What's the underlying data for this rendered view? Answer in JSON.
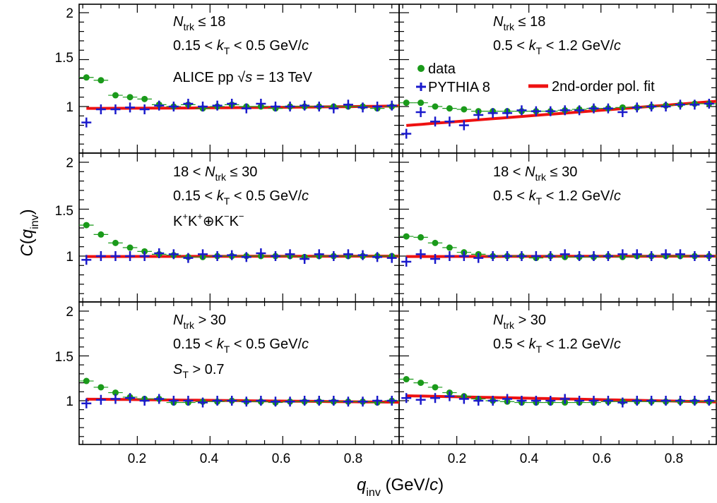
{
  "colors": {
    "data": "#1a9a1a",
    "pythia": "#1a1acc",
    "fit": "#ee1111",
    "axes": "#000000"
  },
  "chart_data": [
    {
      "type": "scatter",
      "panel": "top-left",
      "labels": [
        "Ntrk ≤ 18",
        "0.15 < kT < 0.5 GeV/c",
        "ALICE pp √s = 13 TeV"
      ],
      "series": [
        {
          "name": "data",
          "x": [
            0.06,
            0.1,
            0.14,
            0.18,
            0.22,
            0.26,
            0.3,
            0.34,
            0.38,
            0.42,
            0.46,
            0.5,
            0.54,
            0.58,
            0.62,
            0.66,
            0.7,
            0.74,
            0.78,
            0.82,
            0.86,
            0.9
          ],
          "y": [
            1.31,
            1.28,
            1.12,
            1.1,
            1.08,
            1.02,
            1.0,
            1.02,
            0.98,
            1.0,
            1.02,
            1.0,
            1.0,
            0.98,
            1.0,
            1.0,
            1.0,
            1.0,
            1.0,
            1.0,
            0.98,
            1.0
          ]
        },
        {
          "name": "PYTHIA 8",
          "x": [
            0.06,
            0.1,
            0.14,
            0.18,
            0.22,
            0.26,
            0.3,
            0.34,
            0.38,
            0.42,
            0.46,
            0.5,
            0.54,
            0.58,
            0.62,
            0.66,
            0.7,
            0.74,
            0.78,
            0.82,
            0.86,
            0.9
          ],
          "y": [
            0.83,
            0.97,
            0.97,
            0.99,
            0.97,
            1.01,
            1.0,
            1.03,
            1.0,
            1.01,
            1.03,
            0.98,
            1.03,
            1.0,
            1.0,
            1.01,
            1.0,
            0.98,
            1.02,
            0.99,
            1.0,
            1.01
          ]
        },
        {
          "name": "2nd-order pol. fit",
          "curve": [
            0.98,
            0.005,
            0.025
          ]
        }
      ]
    },
    {
      "type": "scatter",
      "panel": "top-right",
      "labels": [
        "Ntrk ≤ 18",
        "0.5 < kT < 1.2 GeV/c"
      ],
      "series": [
        {
          "name": "data",
          "x": [
            0.06,
            0.1,
            0.14,
            0.18,
            0.22,
            0.26,
            0.3,
            0.34,
            0.38,
            0.42,
            0.46,
            0.5,
            0.54,
            0.58,
            0.62,
            0.66,
            0.7,
            0.74,
            0.78,
            0.82,
            0.86,
            0.9
          ],
          "y": [
            1.04,
            1.04,
            1.0,
            0.98,
            0.97,
            0.95,
            0.95,
            0.95,
            0.95,
            0.95,
            0.95,
            0.96,
            0.97,
            0.98,
            0.98,
            0.99,
            0.99,
            1.0,
            1.01,
            1.02,
            1.03,
            1.03
          ]
        },
        {
          "name": "PYTHIA 8",
          "x": [
            0.06,
            0.1,
            0.14,
            0.18,
            0.22,
            0.26,
            0.3,
            0.34,
            0.38,
            0.42,
            0.46,
            0.5,
            0.54,
            0.58,
            0.62,
            0.66,
            0.7,
            0.74,
            0.78,
            0.82,
            0.86,
            0.9
          ],
          "y": [
            0.71,
            0.94,
            0.84,
            0.84,
            0.8,
            0.91,
            0.93,
            0.93,
            0.96,
            0.95,
            0.95,
            0.96,
            0.96,
            0.98,
            0.98,
            0.94,
            0.99,
            1.0,
            1.0,
            1.02,
            1.02,
            1.03
          ]
        },
        {
          "name": "2nd-order pol. fit",
          "curve": [
            0.78,
            0.3,
            0.0
          ]
        }
      ]
    },
    {
      "type": "scatter",
      "panel": "middle-left",
      "labels": [
        "18 < Ntrk ≤ 30",
        "0.15 < kT < 0.5 GeV/c",
        "K+K+⊕K−K−"
      ],
      "series": [
        {
          "name": "data",
          "x": [
            0.06,
            0.1,
            0.14,
            0.18,
            0.22,
            0.26,
            0.3,
            0.34,
            0.38,
            0.42,
            0.46,
            0.5,
            0.54,
            0.58,
            0.62,
            0.66,
            0.7,
            0.74,
            0.78,
            0.82,
            0.86,
            0.9
          ],
          "y": [
            1.33,
            1.23,
            1.14,
            1.09,
            1.05,
            1.02,
            1.01,
            0.99,
            0.99,
            1.0,
            1.0,
            1.0,
            1.0,
            1.0,
            1.0,
            0.99,
            1.0,
            1.0,
            1.0,
            1.0,
            1.0,
            1.0
          ]
        },
        {
          "name": "PYTHIA 8",
          "x": [
            0.06,
            0.1,
            0.14,
            0.18,
            0.22,
            0.26,
            0.3,
            0.34,
            0.38,
            0.42,
            0.46,
            0.5,
            0.54,
            0.58,
            0.62,
            0.66,
            0.7,
            0.74,
            0.78,
            0.82,
            0.86,
            0.9
          ],
          "y": [
            0.96,
            1.0,
            1.0,
            1.0,
            1.0,
            1.03,
            1.02,
            0.98,
            1.02,
            1.0,
            1.01,
            0.99,
            1.03,
            1.0,
            1.02,
            0.97,
            1.02,
            1.0,
            1.02,
            1.01,
            0.99,
            0.98
          ]
        },
        {
          "name": "2nd-order pol. fit",
          "curve": [
            0.995,
            0.005,
            0.0
          ]
        }
      ]
    },
    {
      "type": "scatter",
      "panel": "middle-right",
      "labels": [
        "18 < Ntrk ≤ 30",
        "0.5 < kT < 1.2 GeV/c"
      ],
      "series": [
        {
          "name": "data",
          "x": [
            0.06,
            0.1,
            0.14,
            0.18,
            0.22,
            0.26,
            0.3,
            0.34,
            0.38,
            0.42,
            0.46,
            0.5,
            0.54,
            0.58,
            0.62,
            0.66,
            0.7,
            0.74,
            0.78,
            0.82,
            0.86,
            0.9
          ],
          "y": [
            1.21,
            1.2,
            1.14,
            1.09,
            1.04,
            1.02,
            1.0,
            1.0,
            1.0,
            0.98,
            1.0,
            0.99,
            0.99,
            0.99,
            1.0,
            0.99,
            1.0,
            1.0,
            1.0,
            1.0,
            1.0,
            1.0
          ]
        },
        {
          "name": "PYTHIA 8",
          "x": [
            0.06,
            0.1,
            0.14,
            0.18,
            0.22,
            0.26,
            0.3,
            0.34,
            0.38,
            0.42,
            0.46,
            0.5,
            0.54,
            0.58,
            0.62,
            0.66,
            0.7,
            0.74,
            0.78,
            0.82,
            0.86,
            0.9
          ],
          "y": [
            0.94,
            1.02,
            0.97,
            1.0,
            1.0,
            0.98,
            1.0,
            1.0,
            1.0,
            1.0,
            1.0,
            1.02,
            1.0,
            1.0,
            1.0,
            1.02,
            1.02,
            1.0,
            1.02,
            1.02,
            1.0,
            1.0
          ]
        },
        {
          "name": "2nd-order pol. fit",
          "curve": [
            0.995,
            0.005,
            0.0
          ]
        }
      ]
    },
    {
      "type": "scatter",
      "panel": "bottom-left",
      "labels": [
        "Ntrk > 30",
        "0.15 < kT < 0.5 GeV/c",
        "ST > 0.7"
      ],
      "series": [
        {
          "name": "data",
          "x": [
            0.06,
            0.1,
            0.14,
            0.18,
            0.22,
            0.26,
            0.3,
            0.34,
            0.38,
            0.42,
            0.46,
            0.5,
            0.54,
            0.58,
            0.62,
            0.66,
            0.7,
            0.74,
            0.78,
            0.82,
            0.86,
            0.9
          ],
          "y": [
            1.22,
            1.15,
            1.09,
            1.04,
            1.02,
            1.02,
            0.98,
            0.98,
            0.99,
            0.99,
            1.0,
            0.99,
            0.99,
            0.98,
            0.99,
            0.99,
            0.99,
            0.99,
            0.99,
            0.99,
            0.98,
            1.0
          ]
        },
        {
          "name": "PYTHIA 8",
          "x": [
            0.06,
            0.1,
            0.14,
            0.18,
            0.22,
            0.26,
            0.3,
            0.34,
            0.38,
            0.42,
            0.46,
            0.5,
            0.54,
            0.58,
            0.62,
            0.66,
            0.7,
            0.74,
            0.78,
            0.82,
            0.86,
            0.9
          ],
          "y": [
            0.97,
            1.01,
            1.02,
            1.03,
            1.0,
            1.02,
            1.0,
            1.0,
            0.98,
            1.0,
            1.0,
            0.99,
            1.0,
            0.99,
            0.99,
            1.0,
            1.0,
            1.0,
            0.99,
            0.99,
            1.0,
            1.0
          ]
        },
        {
          "name": "2nd-order pol. fit",
          "curve": [
            1.02,
            -0.04,
            0.0
          ]
        }
      ]
    },
    {
      "type": "scatter",
      "panel": "bottom-right",
      "labels": [
        "Ntrk > 30",
        "0.5 < kT < 1.2 GeV/c"
      ],
      "series": [
        {
          "name": "data",
          "x": [
            0.06,
            0.1,
            0.14,
            0.18,
            0.22,
            0.26,
            0.3,
            0.34,
            0.38,
            0.42,
            0.46,
            0.5,
            0.54,
            0.58,
            0.62,
            0.66,
            0.7,
            0.74,
            0.78,
            0.82,
            0.86,
            0.9
          ],
          "y": [
            1.24,
            1.2,
            1.15,
            1.09,
            1.05,
            1.02,
            1.0,
            0.99,
            0.98,
            0.98,
            0.98,
            0.98,
            0.98,
            0.98,
            0.99,
            0.99,
            0.99,
            0.99,
            0.99,
            0.99,
            0.99,
            0.99
          ]
        },
        {
          "name": "PYTHIA 8",
          "x": [
            0.06,
            0.1,
            0.14,
            0.18,
            0.22,
            0.26,
            0.3,
            0.34,
            0.38,
            0.42,
            0.46,
            0.5,
            0.54,
            0.58,
            0.62,
            0.66,
            0.7,
            0.74,
            0.78,
            0.82,
            0.86,
            0.9
          ],
          "y": [
            1.03,
            1.01,
            1.03,
            1.05,
            1.02,
            1.0,
            1.0,
            1.02,
            1.0,
            1.0,
            1.0,
            1.02,
            1.0,
            1.0,
            1.0,
            0.98,
            1.0,
            1.0,
            1.0,
            1.0,
            1.0,
            1.0
          ]
        },
        {
          "name": "2nd-order pol. fit",
          "curve": [
            1.06,
            -0.08,
            0.0
          ]
        }
      ]
    }
  ],
  "legend": {
    "data": "data",
    "pythia": "PYTHIA 8",
    "fit": "2nd-order pol. fit"
  },
  "axes": {
    "xlabel": "q_inv (GeV/c)",
    "ylabel": "C(q_inv)",
    "xlim": [
      0.04,
      0.92
    ],
    "ylim": [
      0.6,
      2.1
    ],
    "xticks": [
      "0.2",
      "0.4",
      "0.6",
      "0.8"
    ],
    "yticks": [
      "1",
      "1.5",
      "2"
    ]
  },
  "panel_text": {
    "tl": {
      "line1": "N",
      "line1_sub": "trk",
      "line1_rest": " ≤ 18",
      "line2_a": "0.15 < ",
      "line2_k": "k",
      "line2_sub": "T",
      "line2_rest": " < 0.5 GeV/",
      "line2_c": "c",
      "line3": "ALICE pp ",
      "line3_sqrt": "√",
      "line3_s": "s",
      "line3_rest": " = 13 TeV"
    },
    "tr": {
      "line1": "N",
      "line1_sub": "trk",
      "line1_rest": " ≤ 18",
      "line2_a": "0.5 < ",
      "line2_k": "k",
      "line2_sub": "T",
      "line2_rest": " < 1.2 GeV/",
      "line2_c": "c"
    },
    "ml": {
      "line1_a": "18 < ",
      "line1": "N",
      "line1_sub": "trk",
      "line1_rest": " ≤ 30",
      "line2_a": "0.15 < ",
      "line2_k": "k",
      "line2_sub": "T",
      "line2_rest": " < 0.5 GeV/",
      "line2_c": "c",
      "line3_k1": "K",
      "line3_p1": "+",
      "line3_k2": "K",
      "line3_p2": "+",
      "line3_op": "⊕",
      "line3_k3": "K",
      "line3_m1": "−",
      "line3_k4": "K",
      "line3_m2": "−"
    },
    "mr": {
      "line1_a": "18 < ",
      "line1": "N",
      "line1_sub": "trk",
      "line1_rest": " ≤ 30",
      "line2_a": "0.5 < ",
      "line2_k": "k",
      "line2_sub": "T",
      "line2_rest": " < 1.2 GeV/",
      "line2_c": "c"
    },
    "bl": {
      "line1": "N",
      "line1_sub": "trk",
      "line1_rest": " > 30",
      "line2_a": "0.15 < ",
      "line2_k": "k",
      "line2_sub": "T",
      "line2_rest": " < 0.5 GeV/",
      "line2_c": "c",
      "line3_s": "S",
      "line3_sub": "T",
      "line3_rest": " > 0.7"
    },
    "br": {
      "line1": "N",
      "line1_sub": "trk",
      "line1_rest": " > 30",
      "line2_a": "0.5 < ",
      "line2_k": "k",
      "line2_sub": "T",
      "line2_rest": " < 1.2 GeV/",
      "line2_c": "c"
    }
  },
  "axis_title": {
    "x_q": "q",
    "x_sub": "inv",
    "x_rest": " (GeV/",
    "x_c": "c",
    "x_close": ")",
    "y_c": "C",
    "y_open": "(",
    "y_q": "q",
    "y_sub": "inv",
    "y_close": ")"
  }
}
